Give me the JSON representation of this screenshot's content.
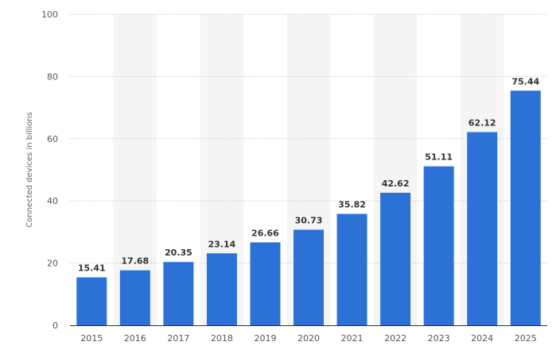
{
  "chart_data": {
    "type": "bar",
    "title": "",
    "xlabel": "",
    "ylabel": "Connected devices in billions",
    "categories": [
      "2015",
      "2016",
      "2017",
      "2018",
      "2019",
      "2020",
      "2021",
      "2022",
      "2023",
      "2024",
      "2025"
    ],
    "values": [
      15.41,
      17.68,
      20.35,
      23.14,
      26.66,
      30.73,
      35.82,
      42.62,
      51.11,
      62.12,
      75.44
    ],
    "value_labels": [
      "15.41",
      "17.68",
      "20.35",
      "23.14",
      "26.66",
      "30.73",
      "35.82",
      "42.62",
      "51.11",
      "62.12",
      "75.44"
    ],
    "ylim": [
      0,
      100
    ],
    "yticks": [
      "0",
      "20",
      "40",
      "60",
      "80",
      "100"
    ],
    "grid": true,
    "legend": "none",
    "bar_color": "#2c72d6",
    "band_color": "#f5f5f5",
    "grid_color": "#c8c8c8"
  }
}
